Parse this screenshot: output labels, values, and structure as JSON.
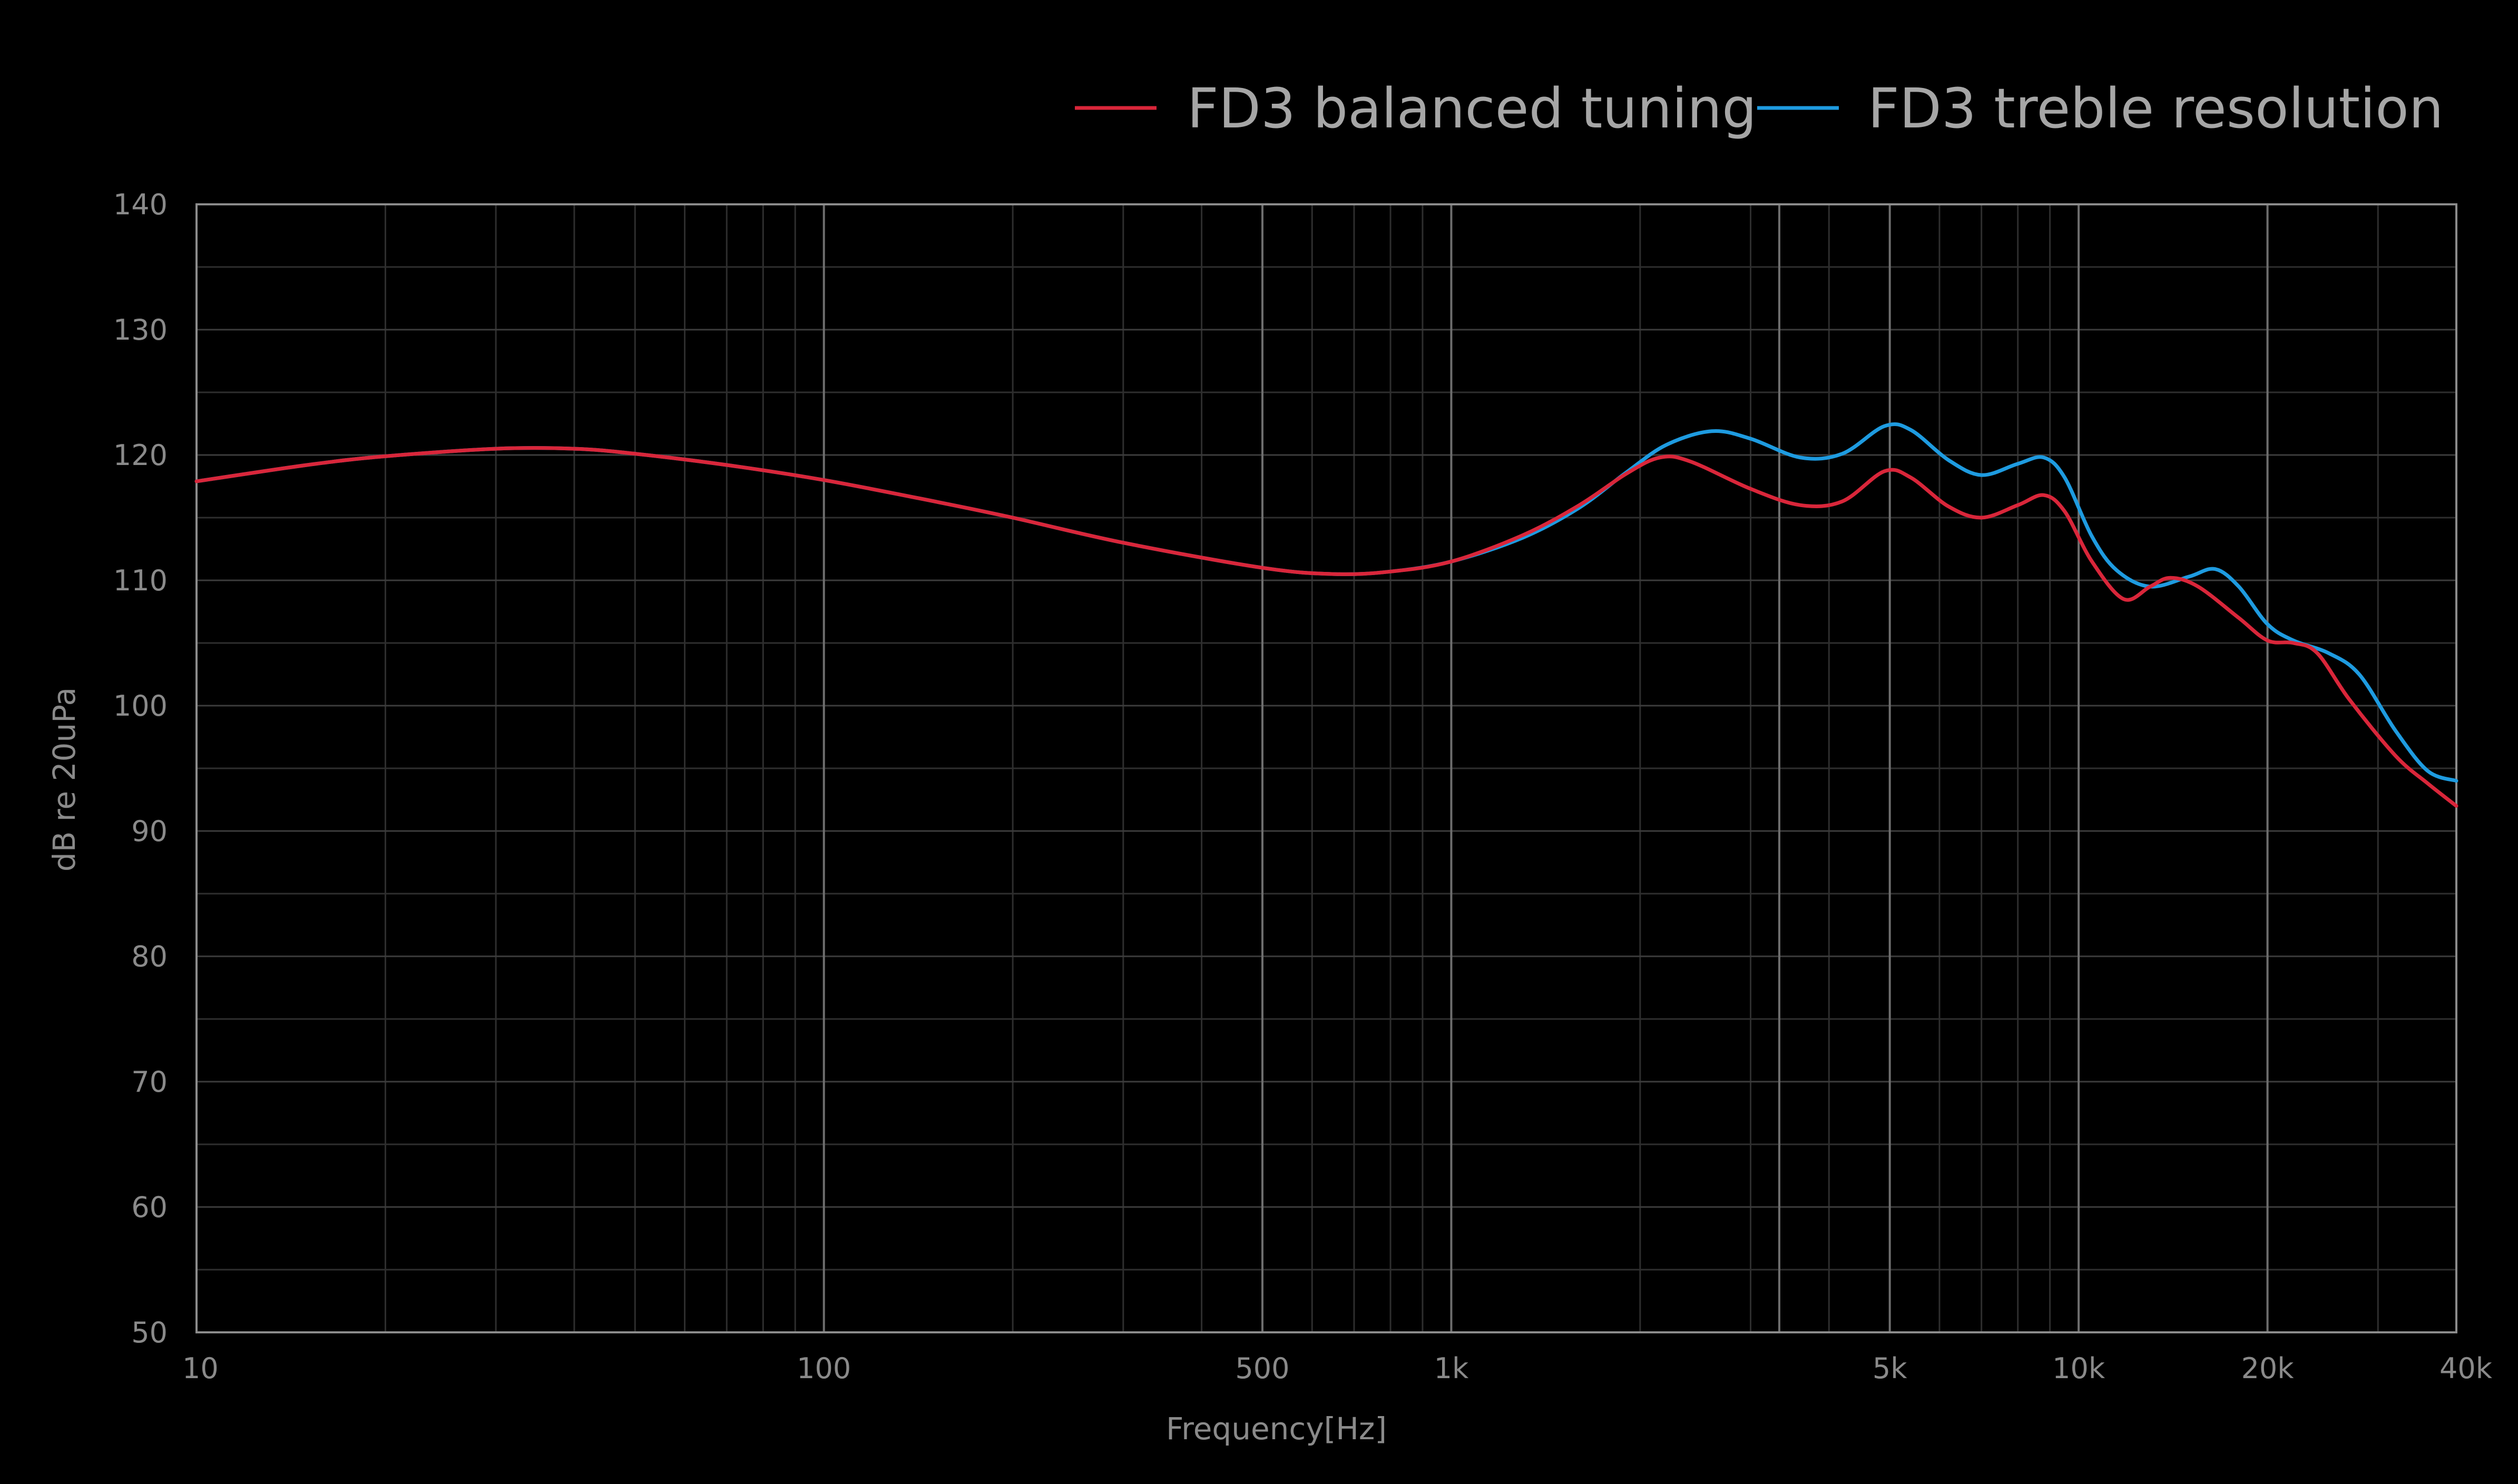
{
  "colors": {
    "background": "#000000",
    "balanced": "#d9263a",
    "treble": "#1e9be0",
    "major_grid": "#6e6e6e",
    "minor_grid": "#2e2e2e",
    "frame": "#8c8c8c",
    "text": "#8a8a8a"
  },
  "chart_data": {
    "type": "line",
    "title": "",
    "xlabel": "Frequency[Hz]",
    "ylabel": "dB re 20uPa",
    "x_scale": "log",
    "xlim": [
      10,
      40000
    ],
    "ylim": [
      50,
      140
    ],
    "grid": true,
    "legend_position": "top-right",
    "x_ticks": [
      {
        "value": 10,
        "label": "10"
      },
      {
        "value": 100,
        "label": "100"
      },
      {
        "value": 500,
        "label": "500"
      },
      {
        "value": 1000,
        "label": "1k"
      },
      {
        "value": 5000,
        "label": "5k"
      },
      {
        "value": 10000,
        "label": "10k"
      },
      {
        "value": 20000,
        "label": "20k"
      },
      {
        "value": 40000,
        "label": "40k"
      }
    ],
    "y_ticks": [
      {
        "value": 140,
        "label": "140"
      },
      {
        "value": 130,
        "label": "130"
      },
      {
        "value": 120,
        "label": "120"
      },
      {
        "value": 110,
        "label": "110"
      },
      {
        "value": 100,
        "label": "100"
      },
      {
        "value": 90,
        "label": "90"
      },
      {
        "value": 80,
        "label": "80"
      },
      {
        "value": 70,
        "label": "70"
      },
      {
        "value": 60,
        "label": "60"
      },
      {
        "value": 50,
        "label": "50"
      }
    ],
    "series": [
      {
        "name": "FD3 balanced tuning",
        "color_key": "balanced",
        "points": [
          [
            10,
            117.9
          ],
          [
            15,
            119.2
          ],
          [
            20,
            119.9
          ],
          [
            30,
            120.5
          ],
          [
            40,
            120.5
          ],
          [
            50,
            120.1
          ],
          [
            70,
            119.2
          ],
          [
            100,
            118.0
          ],
          [
            150,
            116.3
          ],
          [
            200,
            115.0
          ],
          [
            300,
            113.0
          ],
          [
            500,
            111.0
          ],
          [
            650,
            110.5
          ],
          [
            800,
            110.7
          ],
          [
            1000,
            111.5
          ],
          [
            1300,
            113.6
          ],
          [
            1600,
            116.0
          ],
          [
            1900,
            118.5
          ],
          [
            2150,
            119.8
          ],
          [
            2400,
            119.5
          ],
          [
            3000,
            117.3
          ],
          [
            3600,
            116.0
          ],
          [
            4200,
            116.3
          ],
          [
            4900,
            118.7
          ],
          [
            5400,
            118.2
          ],
          [
            6200,
            115.9
          ],
          [
            7000,
            115.0
          ],
          [
            8000,
            116.0
          ],
          [
            8800,
            116.8
          ],
          [
            9500,
            115.5
          ],
          [
            10500,
            111.5
          ],
          [
            11800,
            108.5
          ],
          [
            13000,
            109.5
          ],
          [
            14000,
            110.2
          ],
          [
            15500,
            109.5
          ],
          [
            18000,
            107.0
          ],
          [
            20000,
            105.2
          ],
          [
            22000,
            105.0
          ],
          [
            24000,
            104.2
          ],
          [
            27000,
            100.5
          ],
          [
            32000,
            96.0
          ],
          [
            36000,
            93.8
          ],
          [
            40000,
            92.0
          ]
        ]
      },
      {
        "name": "FD3 treble resolution",
        "color_key": "treble",
        "points": [
          [
            10,
            117.9
          ],
          [
            15,
            119.2
          ],
          [
            20,
            119.9
          ],
          [
            30,
            120.5
          ],
          [
            40,
            120.5
          ],
          [
            50,
            120.1
          ],
          [
            70,
            119.2
          ],
          [
            100,
            118.0
          ],
          [
            150,
            116.3
          ],
          [
            200,
            115.0
          ],
          [
            300,
            113.0
          ],
          [
            500,
            111.0
          ],
          [
            650,
            110.5
          ],
          [
            800,
            110.7
          ],
          [
            1000,
            111.5
          ],
          [
            1300,
            113.4
          ],
          [
            1600,
            115.8
          ],
          [
            1900,
            118.6
          ],
          [
            2200,
            120.8
          ],
          [
            2600,
            121.9
          ],
          [
            3000,
            121.3
          ],
          [
            3600,
            119.8
          ],
          [
            4200,
            120.1
          ],
          [
            4900,
            122.3
          ],
          [
            5400,
            122.0
          ],
          [
            6200,
            119.6
          ],
          [
            7000,
            118.4
          ],
          [
            8000,
            119.3
          ],
          [
            8800,
            119.8
          ],
          [
            9500,
            118.2
          ],
          [
            10500,
            113.5
          ],
          [
            11500,
            110.8
          ],
          [
            13000,
            109.5
          ],
          [
            15000,
            110.3
          ],
          [
            16500,
            110.9
          ],
          [
            18000,
            109.5
          ],
          [
            20000,
            106.5
          ],
          [
            22000,
            105.2
          ],
          [
            25000,
            104.2
          ],
          [
            28000,
            102.5
          ],
          [
            32000,
            98.0
          ],
          [
            36000,
            94.8
          ],
          [
            40000,
            94.0
          ]
        ]
      }
    ]
  }
}
